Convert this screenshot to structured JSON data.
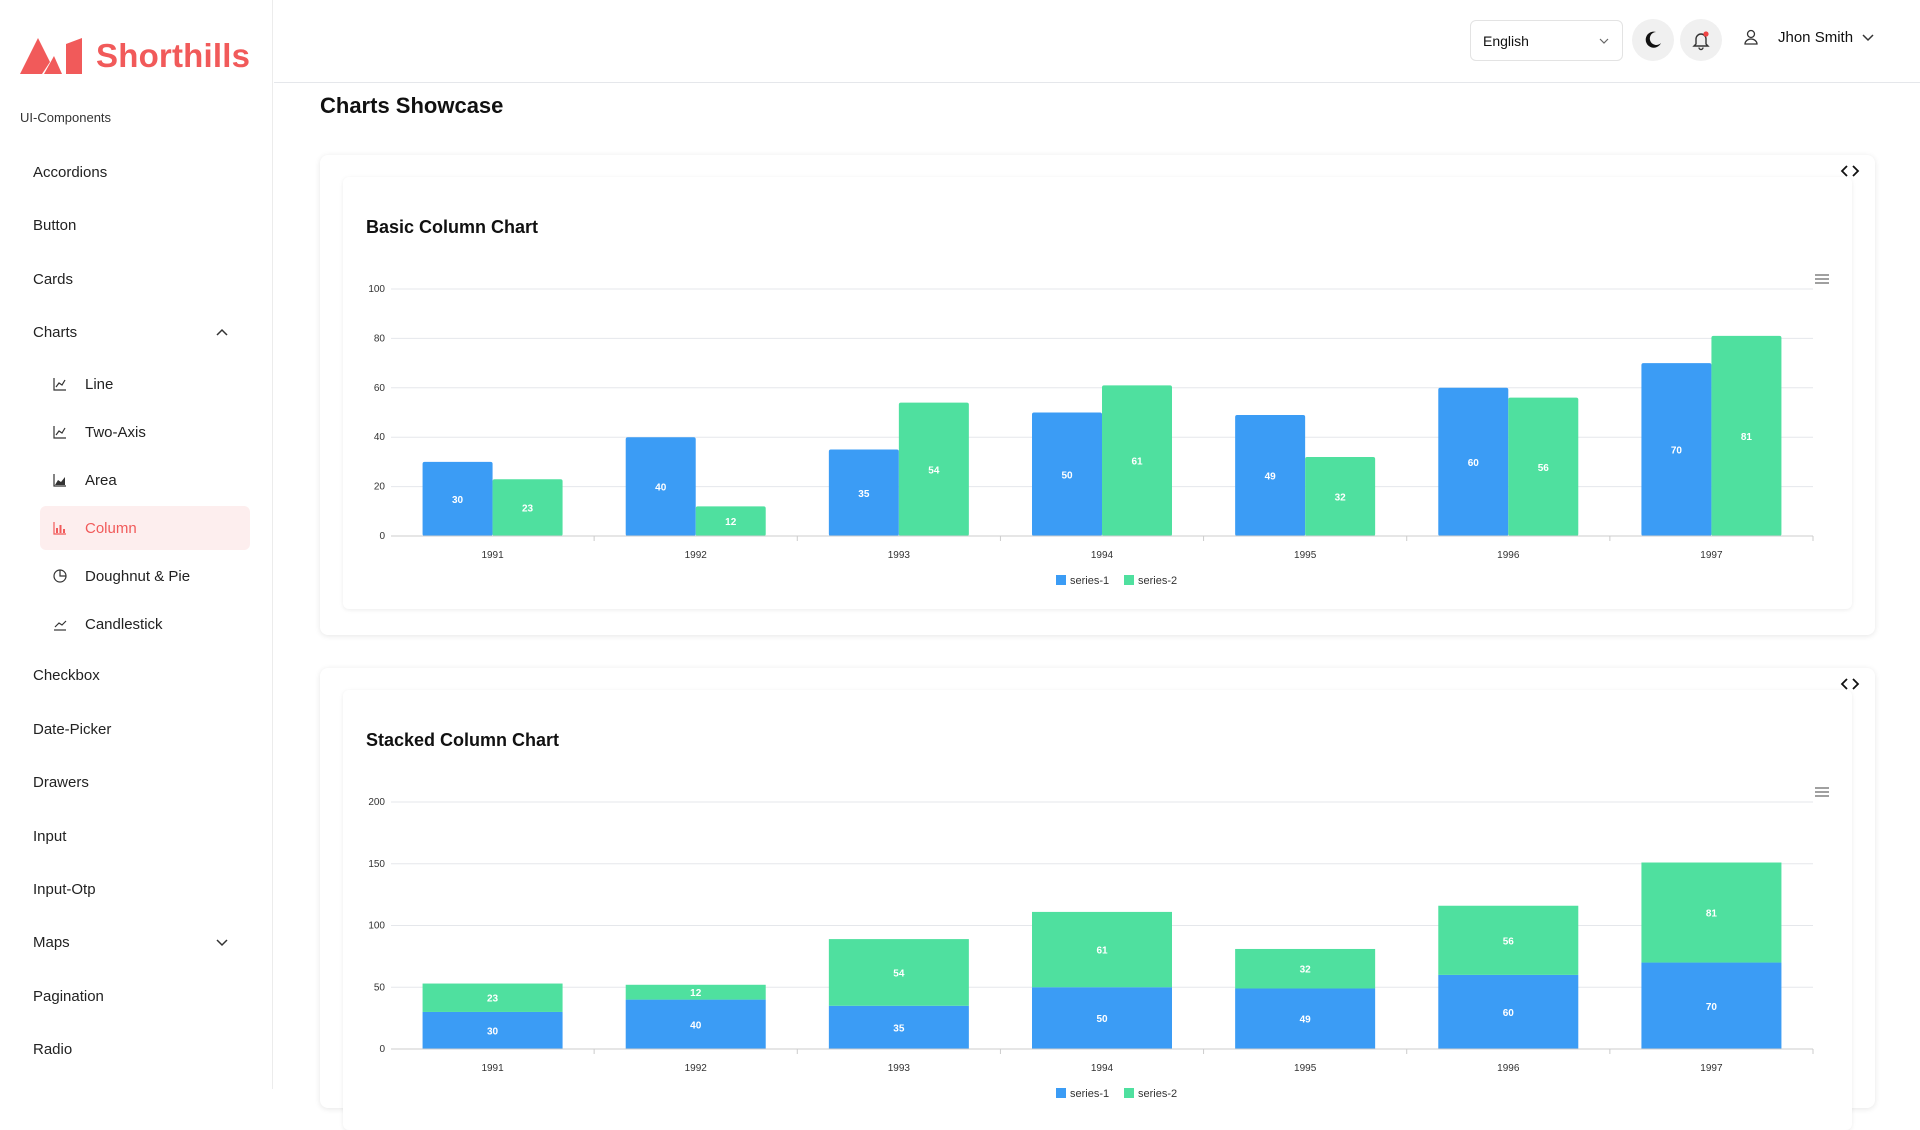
{
  "brand": {
    "name": "Shorthills",
    "color": "#f15a5a"
  },
  "sidebar": {
    "section_label": "UI-Components",
    "items": [
      {
        "label": "Accordions"
      },
      {
        "label": "Button"
      },
      {
        "label": "Cards"
      },
      {
        "label": "Charts",
        "expanded": true
      },
      {
        "label": "Checkbox"
      },
      {
        "label": "Date-Picker"
      },
      {
        "label": "Drawers"
      },
      {
        "label": "Input"
      },
      {
        "label": "Input-Otp"
      },
      {
        "label": "Maps",
        "expanded": false
      },
      {
        "label": "Pagination"
      },
      {
        "label": "Radio"
      }
    ],
    "chart_sub_items": [
      {
        "label": "Line",
        "icon": "line-chart-icon"
      },
      {
        "label": "Two-Axis",
        "icon": "line-chart-icon"
      },
      {
        "label": "Area",
        "icon": "area-chart-icon"
      },
      {
        "label": "Column",
        "icon": "bar-chart-icon",
        "active": true
      },
      {
        "label": "Doughnut & Pie",
        "icon": "pie-chart-icon"
      },
      {
        "label": "Candlestick",
        "icon": "candlestick-icon"
      }
    ]
  },
  "header": {
    "language": "English",
    "user_name": "Jhon Smith",
    "notification_dot_color": "#ef4444"
  },
  "page": {
    "title": "Charts Showcase"
  },
  "colors": {
    "series1": "#3b9cf5",
    "series2": "#4fe09f"
  },
  "chart_data": [
    {
      "type": "bar",
      "title": "Basic Column Chart",
      "categories": [
        "1991",
        "1992",
        "1993",
        "1994",
        "1995",
        "1996",
        "1997"
      ],
      "series": [
        {
          "name": "series-1",
          "values": [
            30,
            40,
            35,
            50,
            49,
            60,
            70
          ]
        },
        {
          "name": "series-2",
          "values": [
            23,
            12,
            54,
            61,
            32,
            56,
            81
          ]
        }
      ],
      "ylim": [
        0,
        100
      ],
      "yticks": [
        0,
        20,
        40,
        60,
        80,
        100
      ],
      "stacked": false,
      "legend": "bottom-center",
      "grid": true
    },
    {
      "type": "bar",
      "title": "Stacked Column Chart",
      "categories": [
        "1991",
        "1992",
        "1993",
        "1994",
        "1995",
        "1996",
        "1997"
      ],
      "series": [
        {
          "name": "series-1",
          "values": [
            30,
            40,
            35,
            50,
            49,
            60,
            70
          ]
        },
        {
          "name": "series-2",
          "values": [
            23,
            12,
            54,
            61,
            32,
            56,
            81
          ]
        }
      ],
      "ylim": [
        0,
        200
      ],
      "yticks": [
        0,
        50,
        100,
        150,
        200
      ],
      "stacked": true,
      "legend": "bottom-center",
      "grid": true
    }
  ]
}
